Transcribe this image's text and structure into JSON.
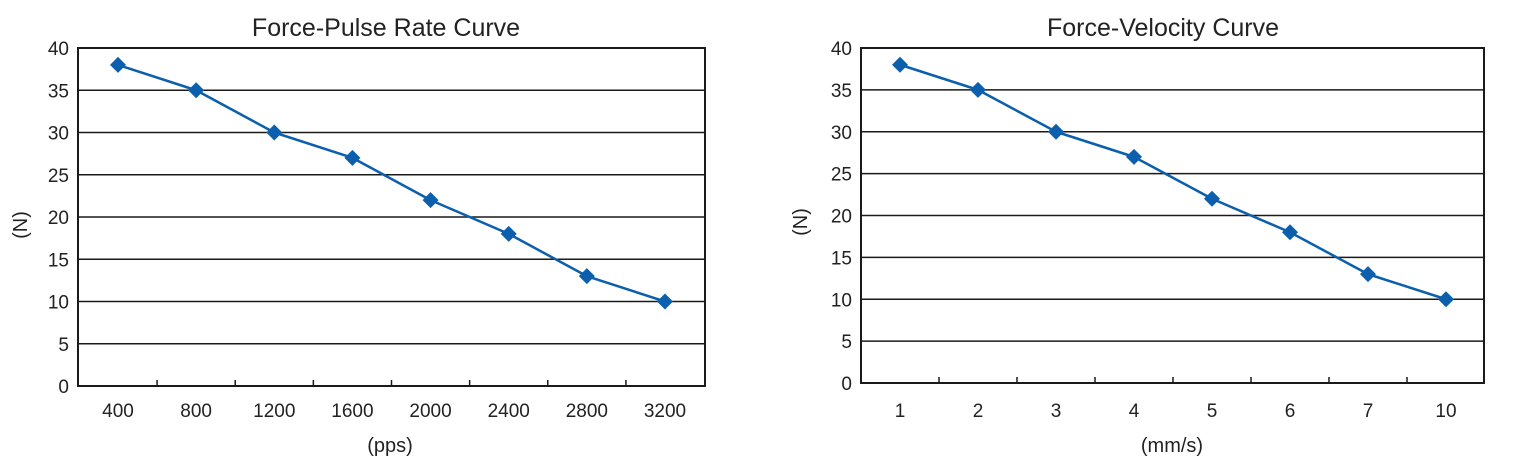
{
  "chart_data": [
    {
      "type": "line",
      "title": "Force-Pulse Rate Curve",
      "xlabel": "(pps)",
      "ylabel": "(N)",
      "categories": [
        "400",
        "800",
        "1200",
        "1600",
        "2000",
        "2400",
        "2800",
        "3200"
      ],
      "series": [
        {
          "values": [
            38,
            35,
            30,
            27,
            22,
            18,
            13,
            10
          ],
          "color": "#0b5fad"
        }
      ],
      "ylim": [
        0,
        40
      ],
      "yticks": [
        0,
        5,
        10,
        15,
        20,
        25,
        30,
        35,
        40
      ],
      "grid": "horizontal"
    },
    {
      "type": "line",
      "title": "Force-Velocity Curve",
      "xlabel": "(mm/s)",
      "ylabel": "(N)",
      "categories": [
        "1",
        "2",
        "3",
        "4",
        "5",
        "6",
        "7",
        "10"
      ],
      "series": [
        {
          "values": [
            38,
            35,
            30,
            27,
            22,
            18,
            13,
            10
          ],
          "color": "#0b5fad"
        }
      ],
      "ylim": [
        0,
        40
      ],
      "yticks": [
        0,
        5,
        10,
        15,
        20,
        25,
        30,
        35,
        40
      ],
      "grid": "horizontal"
    }
  ]
}
